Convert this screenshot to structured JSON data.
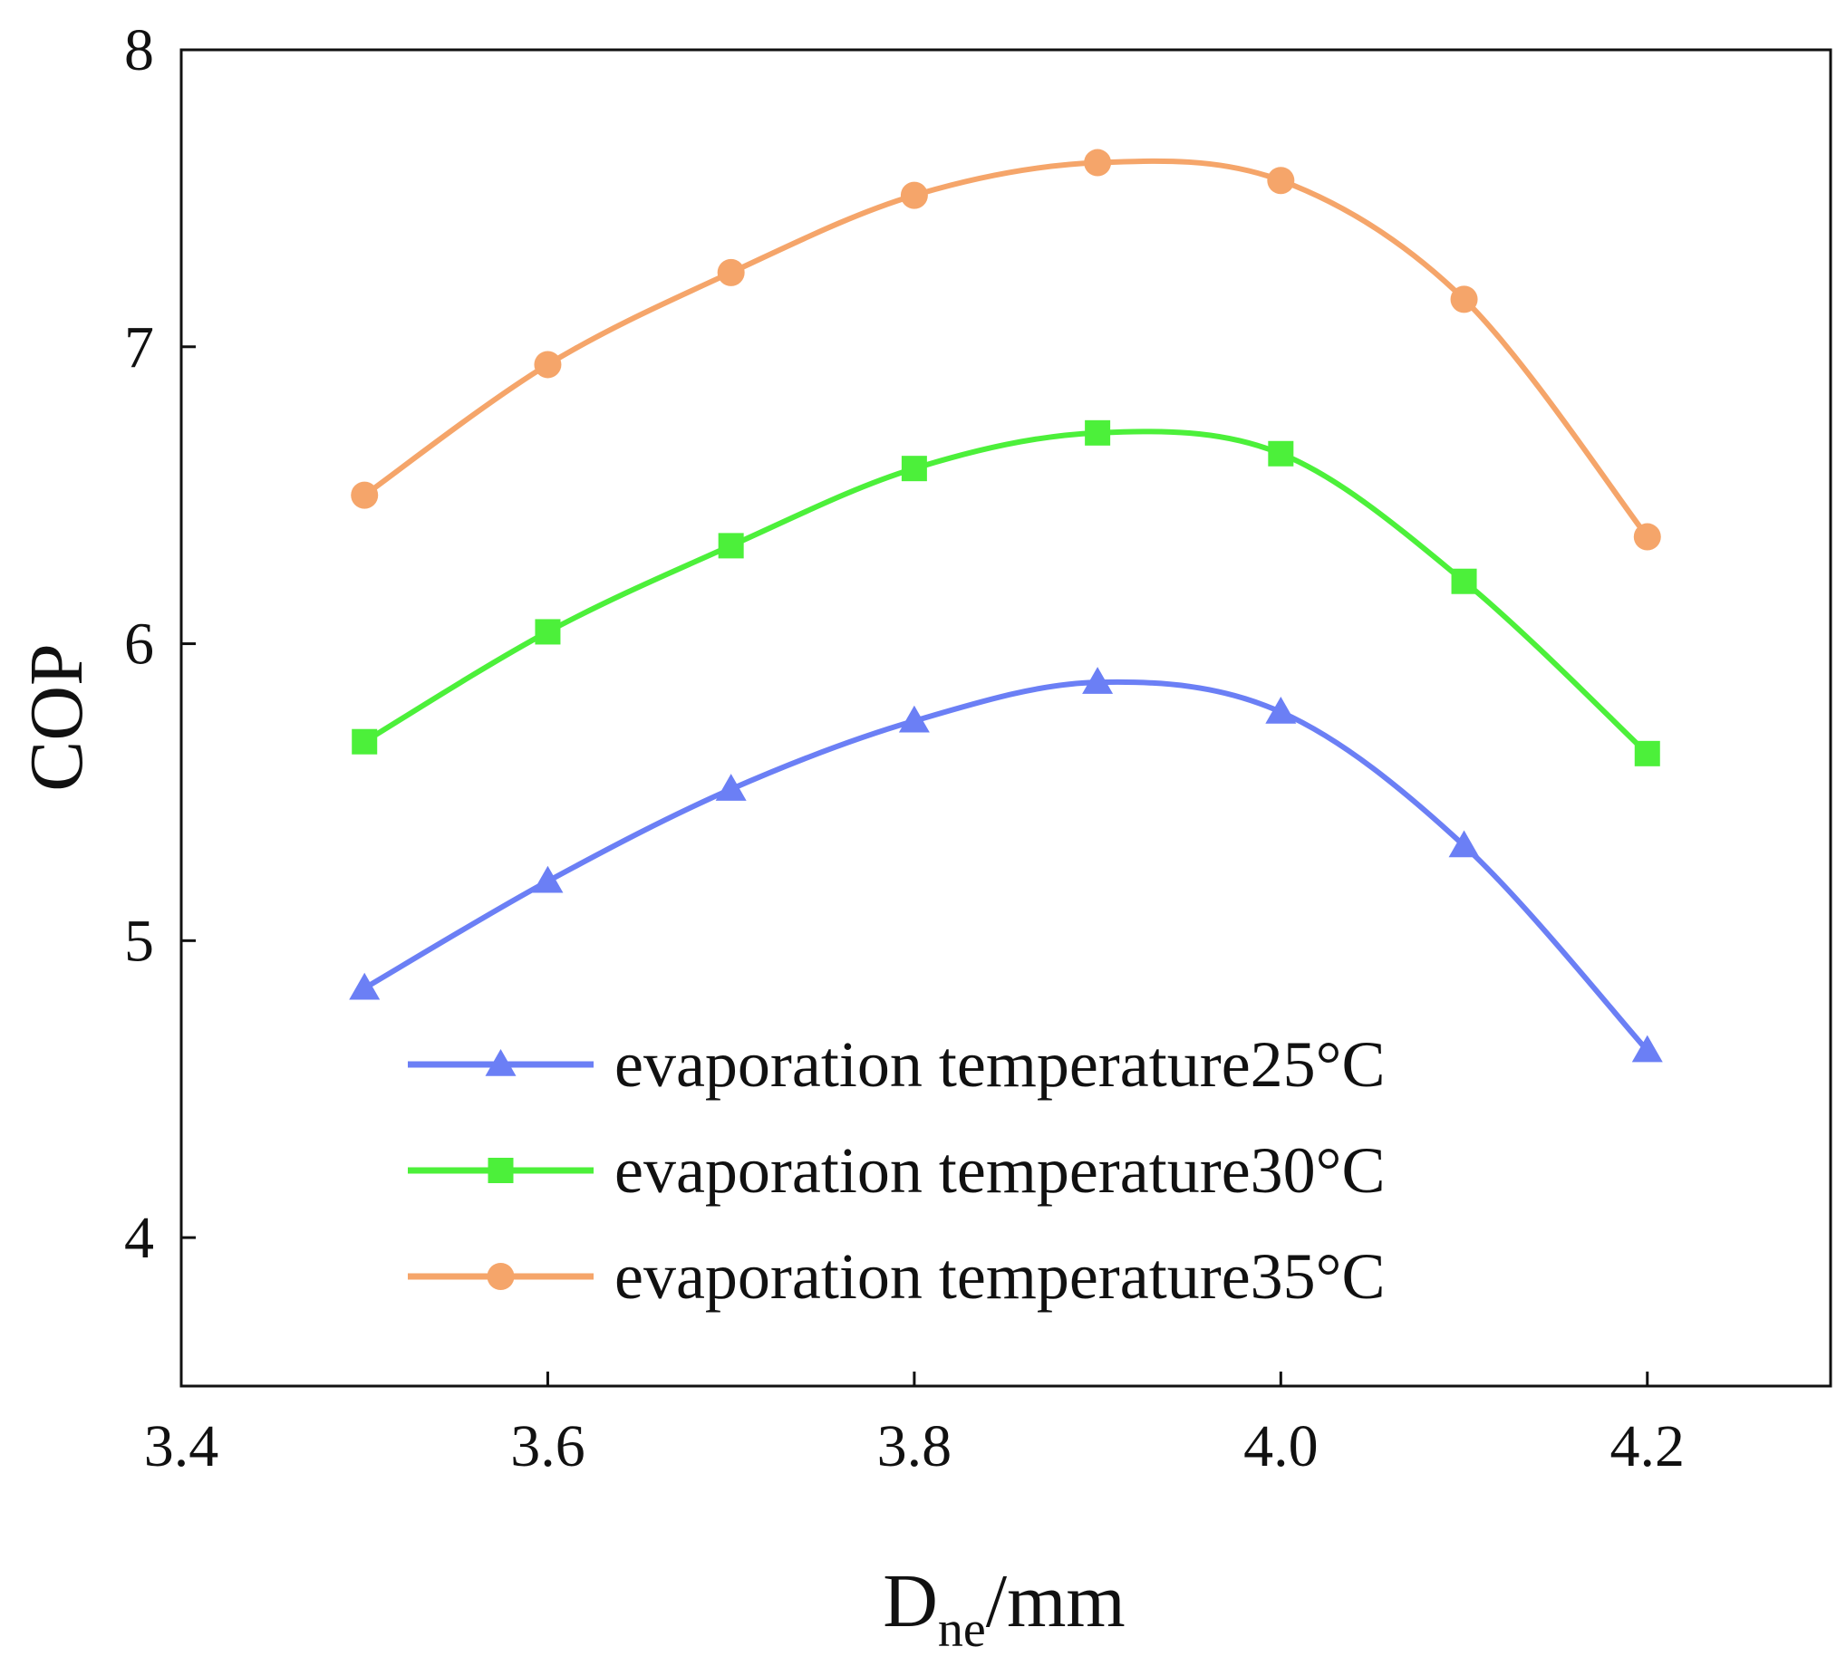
{
  "chart_data": {
    "type": "line",
    "title": "",
    "xlabel": {
      "main": "D",
      "subscript": "ne",
      "unit": "/mm"
    },
    "ylabel": "COP",
    "xlim": [
      3.4,
      4.3
    ],
    "ylim": [
      3.5,
      8
    ],
    "x_ticks": [
      {
        "value": 3.4,
        "label": "3.4"
      },
      {
        "value": 3.6,
        "label": "3.6"
      },
      {
        "value": 3.8,
        "label": "3.8"
      },
      {
        "value": 4.0,
        "label": "4.0"
      },
      {
        "value": 4.2,
        "label": "4.2"
      }
    ],
    "y_ticks": [
      {
        "value": 4,
        "label": "4"
      },
      {
        "value": 5,
        "label": "5"
      },
      {
        "value": 6,
        "label": "6"
      },
      {
        "value": 7,
        "label": "7"
      },
      {
        "value": 8,
        "label": "8"
      }
    ],
    "grid": false,
    "legend_position": "bottom-center",
    "x": [
      3.5,
      3.6,
      3.7,
      3.8,
      3.9,
      4.0,
      4.1,
      4.2
    ],
    "series": [
      {
        "name": "evaporation temperature25°C",
        "marker": "triangle",
        "color": "#6b7ff5",
        "values": [
          4.84,
          5.2,
          5.51,
          5.74,
          5.87,
          5.77,
          5.32,
          4.63
        ]
      },
      {
        "name": "evaporation temperature30°C",
        "marker": "square",
        "color": "#4cf03a",
        "values": [
          5.67,
          6.04,
          6.33,
          6.59,
          6.71,
          6.64,
          6.21,
          5.63
        ]
      },
      {
        "name": "evaporation temperature35°C",
        "marker": "circle",
        "color": "#f5a56a",
        "values": [
          6.5,
          6.94,
          7.25,
          7.51,
          7.62,
          7.56,
          7.16,
          6.36
        ]
      }
    ]
  }
}
